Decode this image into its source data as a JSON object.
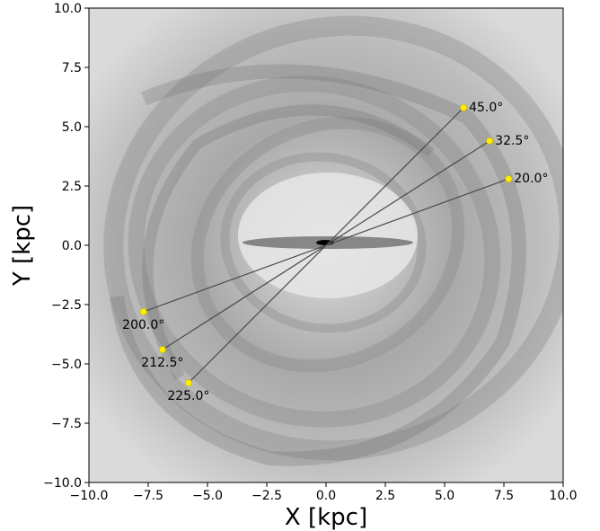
{
  "chart_data": {
    "type": "scatter",
    "title": "",
    "xlabel": "X [kpc]",
    "ylabel": "Y [kpc]",
    "xlim": [
      -10,
      10
    ],
    "ylim": [
      -10,
      10
    ],
    "xticks": [
      "−10.0",
      "−7.5",
      "−5.0",
      "−2.5",
      "0.0",
      "2.5",
      "5.0",
      "7.5",
      "10.0"
    ],
    "yticks": [
      "−10.0",
      "−7.5",
      "−5.0",
      "−2.5",
      "0.0",
      "2.5",
      "5.0",
      "7.5",
      "10.0"
    ],
    "grid": false,
    "background": "grayscale galaxy density map",
    "marker_color": "#ffee00",
    "line_color": "#4a4a4a",
    "points": [
      {
        "label": "45.0°",
        "x": 5.8,
        "y": 5.8
      },
      {
        "label": "32.5°",
        "x": 6.9,
        "y": 4.4
      },
      {
        "label": "20.0°",
        "x": 7.7,
        "y": 2.8
      },
      {
        "label": "200.0°",
        "x": -7.7,
        "y": -2.8
      },
      {
        "label": "212.5°",
        "x": -6.9,
        "y": -4.4
      },
      {
        "label": "225.0°",
        "x": -5.8,
        "y": -5.8
      }
    ],
    "rays": [
      {
        "from": "45.0°",
        "to": "225.0°"
      },
      {
        "from": "32.5°",
        "to": "212.5°"
      },
      {
        "from": "20.0°",
        "to": "200.0°"
      }
    ]
  }
}
